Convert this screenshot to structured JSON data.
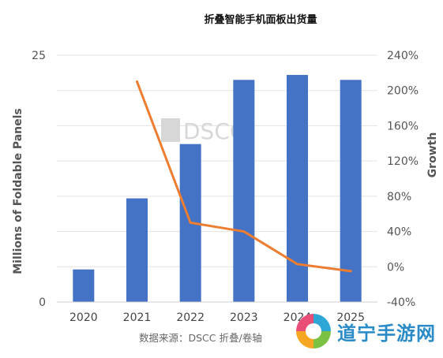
{
  "chart_data": {
    "type": "bar",
    "title": "折叠智能手机面板出货量",
    "categories": [
      "2020",
      "2021",
      "2022",
      "2023",
      "2024",
      "2025"
    ],
    "series": [
      {
        "kind": "bar",
        "axis": "left",
        "values": [
          3.3,
          10.5,
          16.0,
          22.5,
          23.0,
          22.5
        ],
        "color": "#4472C4"
      },
      {
        "kind": "line",
        "axis": "right",
        "values": [
          null,
          210,
          50,
          40,
          3,
          -5
        ],
        "color": "#ED7D31"
      }
    ],
    "ylabel": "Millions of Foldable Panels",
    "y2label": "Growth",
    "ylim": [
      0,
      25
    ],
    "yticks": [
      "0",
      "25"
    ],
    "ytick_values": [
      0,
      25
    ],
    "y2lim": [
      -40,
      240
    ],
    "y2ticks": [
      "-40%",
      "0%",
      "40%",
      "80%",
      "120%",
      "160%",
      "200%",
      "240%"
    ],
    "y2tick_values": [
      -40,
      0,
      40,
      80,
      120,
      160,
      200,
      240
    ],
    "grid": true,
    "source": "数据来源：DSCC 折叠/卷轴",
    "watermark_text": "DSCC"
  },
  "site_logo": {
    "text": "道宁手游网",
    "icon": "swirl-logo-icon"
  }
}
